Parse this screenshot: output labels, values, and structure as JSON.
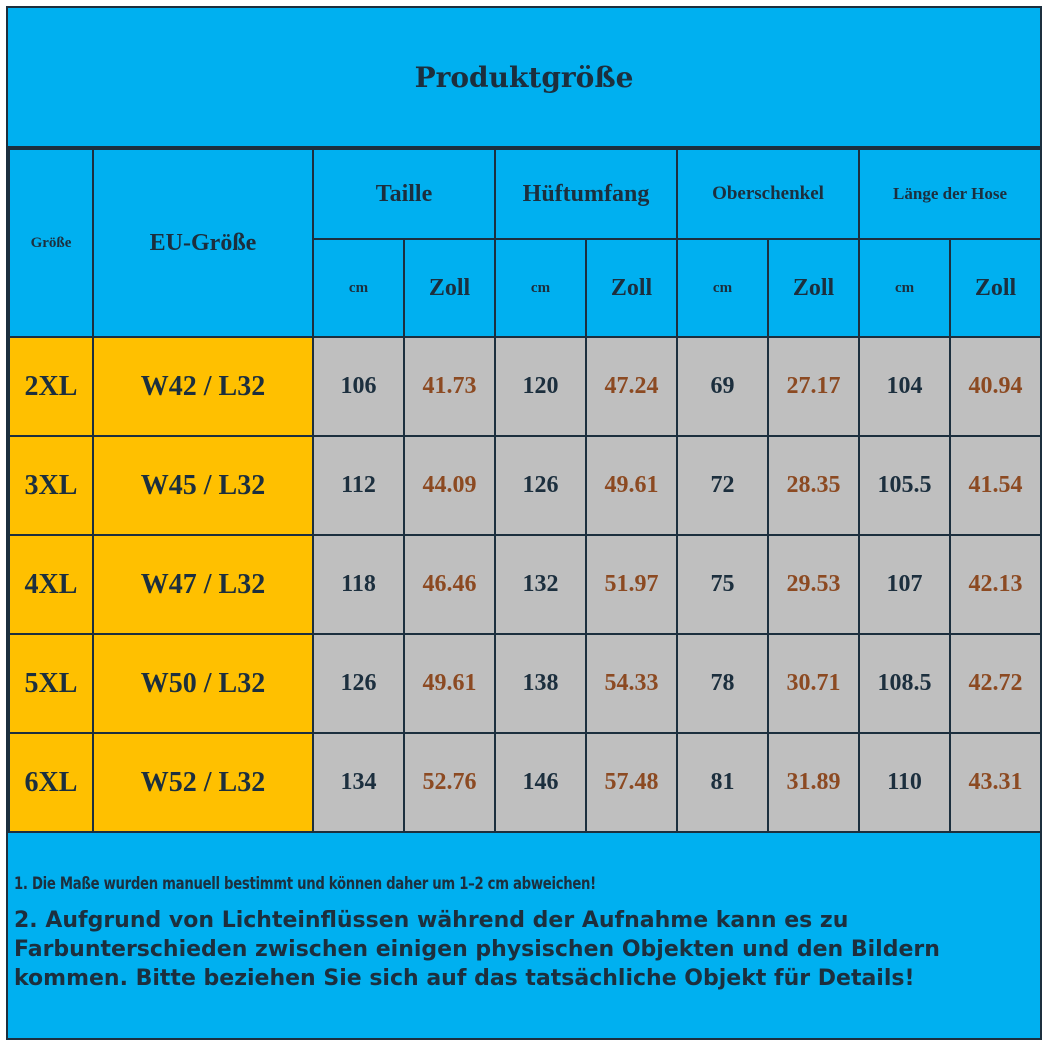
{
  "title": "Produktgröße",
  "headers": {
    "size": "Größe",
    "eu_size": "EU-Größe",
    "groups": [
      "Taille",
      "Hüftumfang",
      "Oberschenkel",
      "Länge der Hose"
    ],
    "unit_cm": "cm",
    "unit_zoll": "Zoll"
  },
  "rows": [
    {
      "size": "2XL",
      "eu": "W42 / L32",
      "values": [
        "106",
        "41.73",
        "120",
        "47.24",
        "69",
        "27.17",
        "104",
        "40.94"
      ]
    },
    {
      "size": "3XL",
      "eu": "W45 / L32",
      "values": [
        "112",
        "44.09",
        "126",
        "49.61",
        "72",
        "28.35",
        "105.5",
        "41.54"
      ]
    },
    {
      "size": "4XL",
      "eu": "W47 / L32",
      "values": [
        "118",
        "46.46",
        "132",
        "51.97",
        "75",
        "29.53",
        "107",
        "42.13"
      ]
    },
    {
      "size": "5XL",
      "eu": "W50 / L32",
      "values": [
        "126",
        "49.61",
        "138",
        "54.33",
        "78",
        "30.71",
        "108.5",
        "42.72"
      ]
    },
    {
      "size": "6XL",
      "eu": "W52 / L32",
      "values": [
        "134",
        "52.76",
        "146",
        "57.48",
        "81",
        "31.89",
        "110",
        "43.31"
      ]
    }
  ],
  "notes": [
    "1. Die Maße wurden manuell bestimmt und können daher um 1–2 cm abweichen!",
    "2. Aufgrund von Lichteinflüssen während der Aufnahme kann es zu Farbunterschieden zwischen einigen physischen Objekten und den Bildern kommen. Bitte beziehen Sie sich auf das tatsächliche Objekt für Details!"
  ],
  "colors": {
    "header_bg": "#00b0f0",
    "size_bg": "#ffc000",
    "value_bg": "#bfbfbf",
    "text": "#1c2f3e",
    "zoll_text": "#8c4a22"
  }
}
